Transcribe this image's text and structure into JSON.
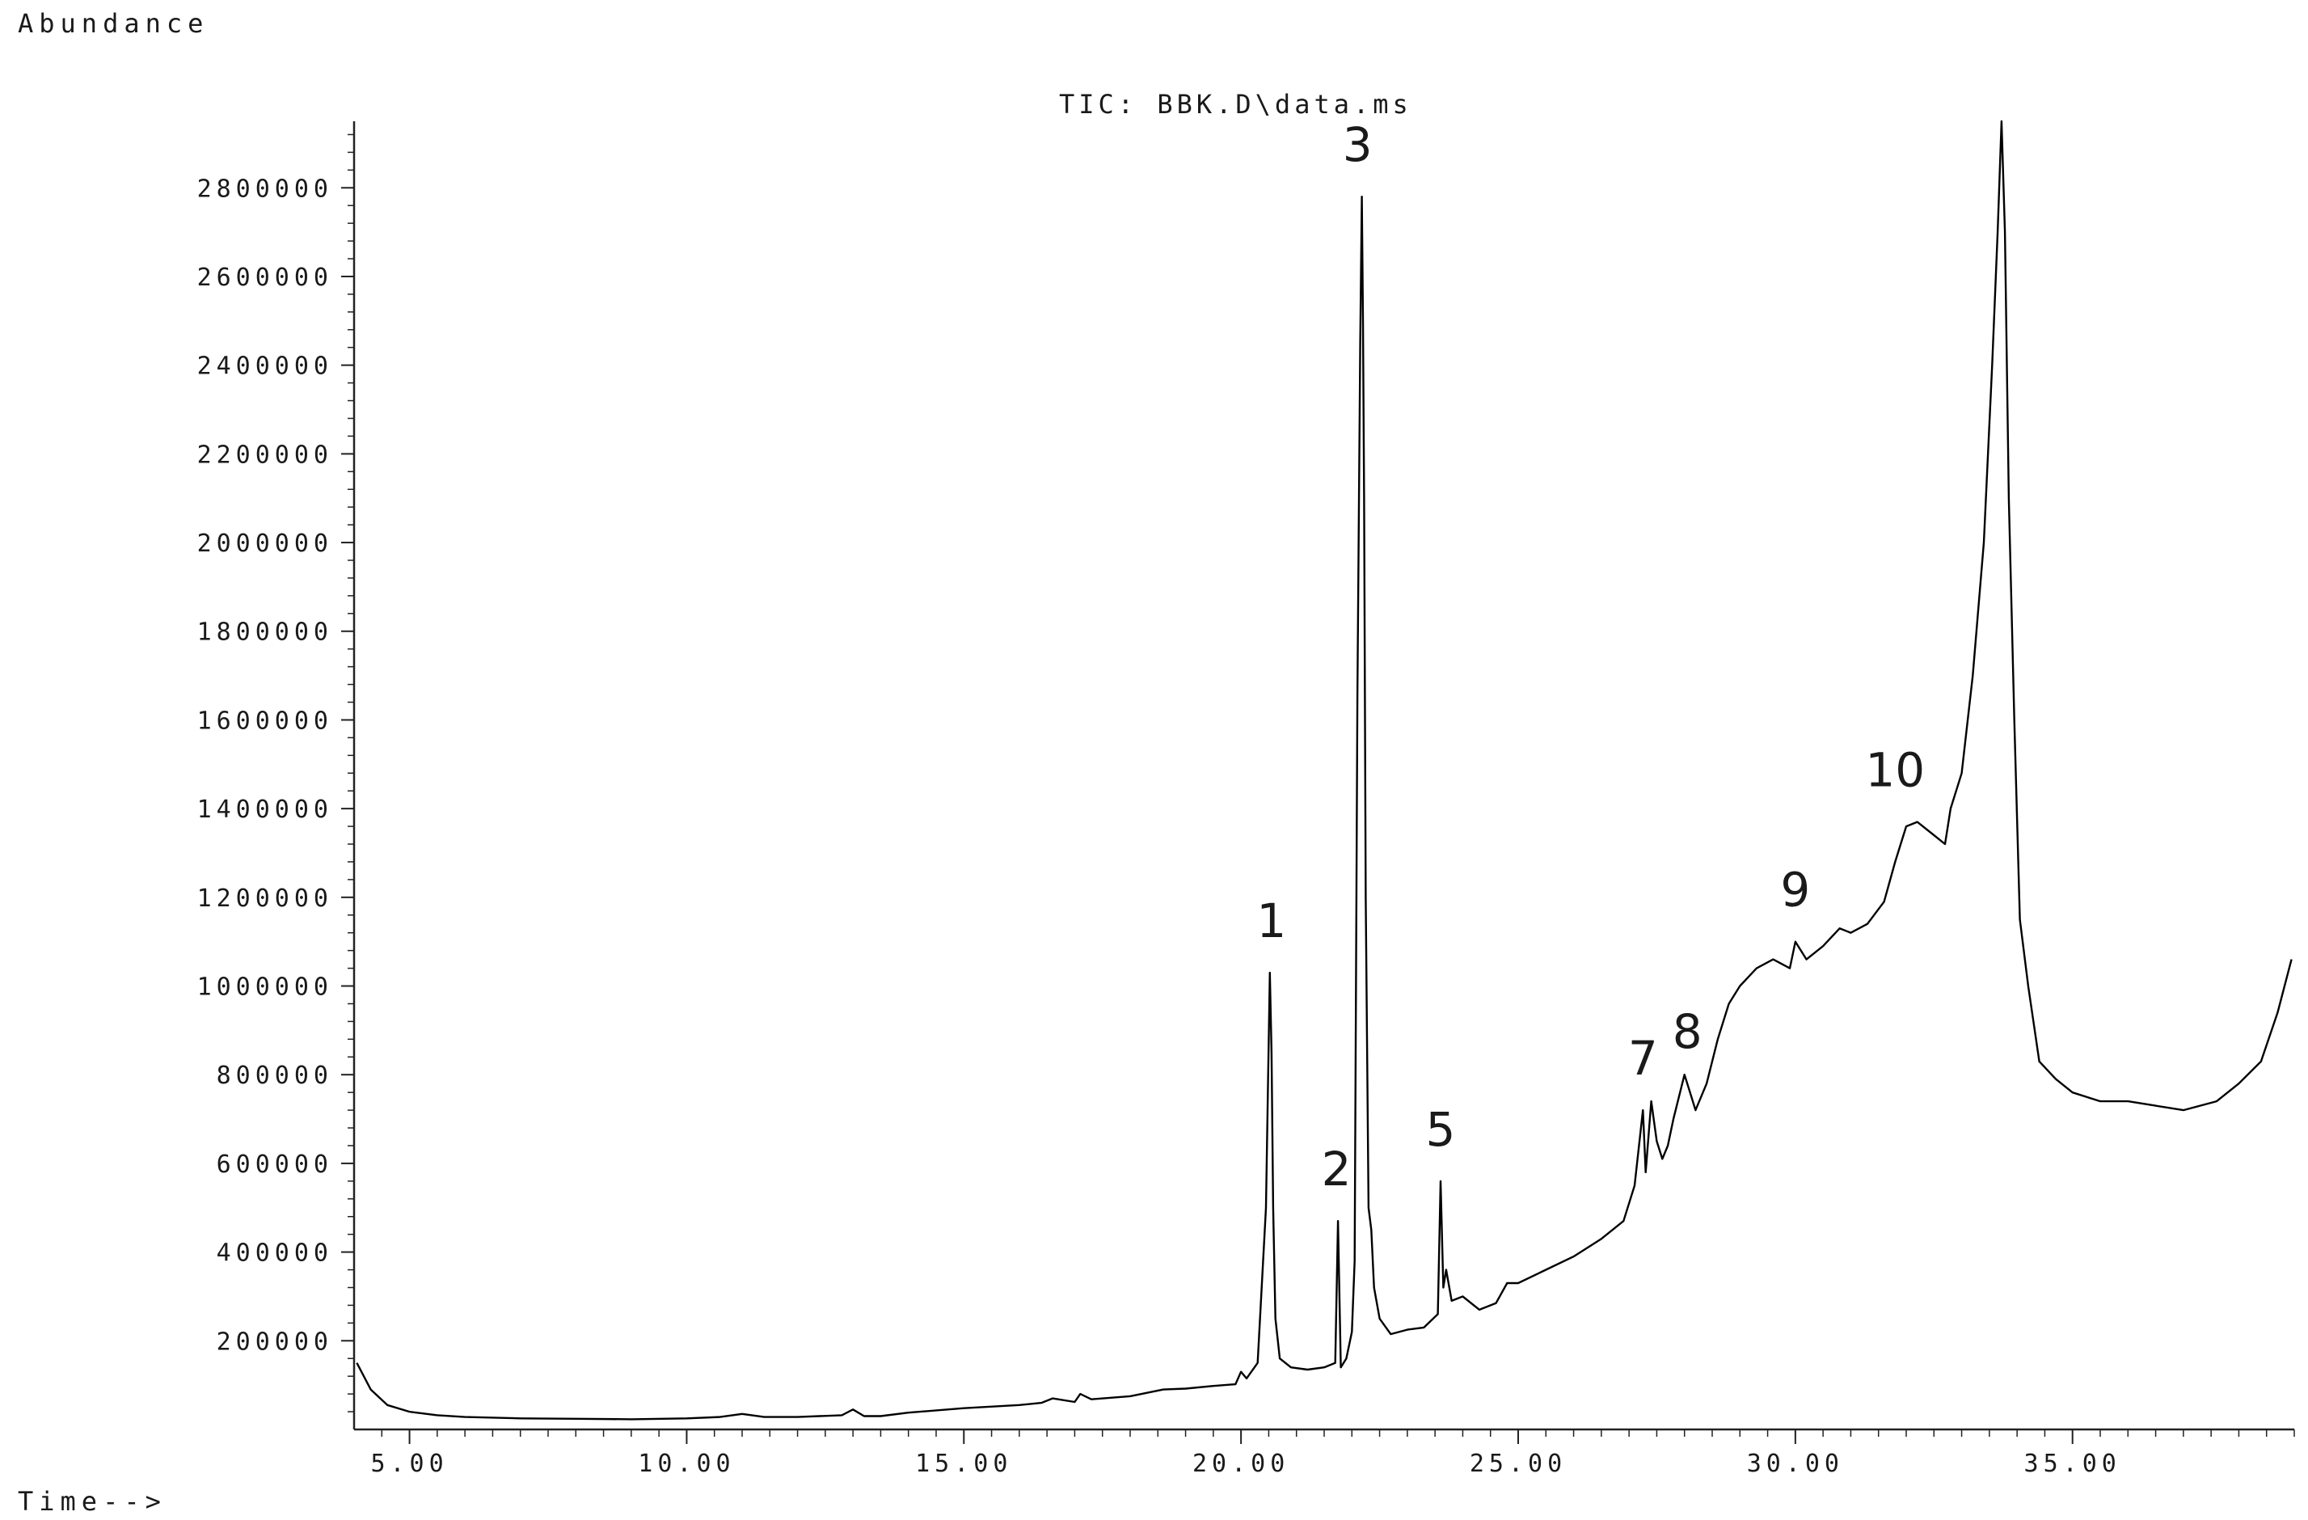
{
  "chart_data": {
    "type": "line",
    "title": "TIC: BBK.D\\data.ms",
    "ylabel": "Abundance",
    "xlabel": "Time-->",
    "xlim": [
      4.0,
      39.0
    ],
    "ylim": [
      0,
      2950000
    ],
    "x_ticks": [
      5.0,
      10.0,
      15.0,
      20.0,
      25.0,
      30.0,
      35.0
    ],
    "x_tick_labels": [
      "5.00",
      "10.00",
      "15.00",
      "20.00",
      "25.00",
      "30.00",
      "35.00"
    ],
    "y_ticks": [
      200000,
      400000,
      600000,
      800000,
      1000000,
      1200000,
      1400000,
      1600000,
      1800000,
      2000000,
      2200000,
      2400000,
      2600000,
      2800000
    ],
    "y_tick_labels": [
      "200000",
      "400000",
      "600000",
      "800000",
      "1000000",
      "1200000",
      "1400000",
      "1600000",
      "1800000",
      "2000000",
      "2200000",
      "2400000",
      "2600000",
      "2800000"
    ],
    "grid": false,
    "line_color": "#000000",
    "series": [
      {
        "x": [
          4.05,
          4.3,
          4.6,
          5.0,
          5.5,
          6.0,
          7.0,
          8.0,
          9.0,
          10.0,
          10.6,
          11.0,
          11.4,
          12.0,
          12.8,
          13.0,
          13.2,
          13.5,
          14.0,
          15.0,
          16.0,
          16.4,
          16.6,
          17.0,
          17.1,
          17.3,
          18.0,
          18.6,
          19.0,
          19.5,
          19.9,
          20.0,
          20.1,
          20.3,
          20.45,
          20.52,
          20.55,
          20.58,
          20.62,
          20.7,
          20.9,
          21.2,
          21.5,
          21.7,
          21.75,
          21.8,
          21.9,
          22.0,
          22.05,
          22.1,
          22.15,
          22.18,
          22.2,
          22.22,
          22.25,
          22.3,
          22.35,
          22.4,
          22.5,
          22.7,
          23.0,
          23.3,
          23.55,
          23.6,
          23.65,
          23.7,
          23.8,
          24.0,
          24.3,
          24.6,
          24.8,
          25.0,
          25.5,
          26.0,
          26.5,
          26.9,
          27.1,
          27.25,
          27.3,
          27.4,
          27.5,
          27.6,
          27.7,
          27.8,
          28.0,
          28.1,
          28.2,
          28.4,
          28.6,
          28.8,
          29.0,
          29.3,
          29.6,
          29.9,
          30.0,
          30.2,
          30.5,
          30.8,
          31.0,
          31.3,
          31.6,
          31.8,
          32.0,
          32.2,
          32.5,
          32.7,
          32.8,
          33.0,
          33.2,
          33.4,
          33.55,
          33.65,
          33.72,
          33.78,
          33.85,
          33.95,
          34.05,
          34.2,
          34.4,
          34.7,
          35.0,
          35.5,
          36.0,
          36.5,
          37.0,
          37.6,
          38.0,
          38.4,
          38.7,
          38.95
        ],
        "y": [
          150000,
          90000,
          55000,
          40000,
          32000,
          28000,
          25000,
          24000,
          23000,
          25000,
          28000,
          35000,
          28000,
          28000,
          32000,
          45000,
          30000,
          30000,
          38000,
          48000,
          55000,
          60000,
          70000,
          62000,
          80000,
          68000,
          75000,
          90000,
          92000,
          98000,
          102000,
          130000,
          115000,
          150000,
          500000,
          1030000,
          850000,
          500000,
          250000,
          160000,
          140000,
          135000,
          140000,
          150000,
          470000,
          140000,
          160000,
          220000,
          380000,
          1650000,
          2450000,
          2780000,
          2500000,
          2100000,
          1200000,
          500000,
          450000,
          320000,
          250000,
          215000,
          225000,
          230000,
          260000,
          560000,
          320000,
          360000,
          290000,
          300000,
          270000,
          285000,
          330000,
          330000,
          360000,
          390000,
          430000,
          470000,
          550000,
          720000,
          580000,
          740000,
          650000,
          610000,
          640000,
          700000,
          800000,
          760000,
          720000,
          780000,
          880000,
          960000,
          1000000,
          1040000,
          1060000,
          1040000,
          1100000,
          1060000,
          1090000,
          1130000,
          1120000,
          1140000,
          1190000,
          1280000,
          1360000,
          1370000,
          1340000,
          1320000,
          1400000,
          1480000,
          1700000,
          2000000,
          2400000,
          2700000,
          2950000,
          2700000,
          2100000,
          1600000,
          1150000,
          1000000,
          830000,
          790000,
          760000,
          740000,
          740000,
          730000,
          720000,
          740000,
          780000,
          830000,
          940000,
          1060000
        ]
      }
    ],
    "annotations": [
      {
        "label": "1",
        "x": 20.55,
        "y": 1030000
      },
      {
        "label": "2",
        "x": 21.72,
        "y": 470000
      },
      {
        "label": "3",
        "x": 22.1,
        "y": 2780000
      },
      {
        "label": "5",
        "x": 23.6,
        "y": 560000
      },
      {
        "label": "7",
        "x": 27.25,
        "y": 720000
      },
      {
        "label": "8",
        "x": 28.05,
        "y": 780000
      },
      {
        "label": "9",
        "x": 30.0,
        "y": 1100000
      },
      {
        "label": "10",
        "x": 31.8,
        "y": 1370000
      }
    ]
  }
}
